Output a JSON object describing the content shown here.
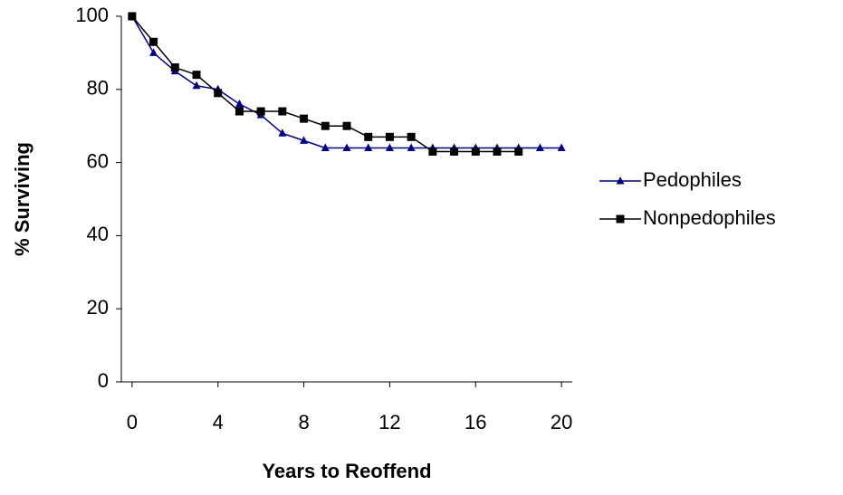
{
  "chart_data": {
    "type": "line",
    "x_label": "Years to Reoffend",
    "y_label": "% Surviving",
    "x": [
      0,
      1,
      2,
      3,
      4,
      5,
      6,
      7,
      8,
      9,
      10,
      11,
      12,
      13,
      14,
      15,
      16,
      17,
      18,
      19,
      20
    ],
    "series": [
      {
        "name": "Pedophiles",
        "color": "#000080",
        "marker": "triangle",
        "values": [
          100,
          90,
          85,
          81,
          80,
          76,
          73,
          68,
          66,
          64,
          64,
          64,
          64,
          64,
          64,
          64,
          64,
          64,
          64,
          64,
          64
        ]
      },
      {
        "name": "Nonpedophiles",
        "color": "#000000",
        "marker": "square",
        "values": [
          100,
          93,
          86,
          84,
          79,
          74,
          74,
          74,
          72,
          70,
          70,
          67,
          67,
          67,
          63,
          63,
          63,
          63,
          63,
          null,
          null
        ]
      }
    ],
    "xlim": [
      -0.5,
      20.5
    ],
    "xticks": [
      0,
      4,
      8,
      12,
      16,
      20
    ],
    "ylim": [
      0,
      100
    ],
    "yticks": [
      0,
      20,
      40,
      60,
      80,
      100
    ],
    "legend": "right"
  }
}
